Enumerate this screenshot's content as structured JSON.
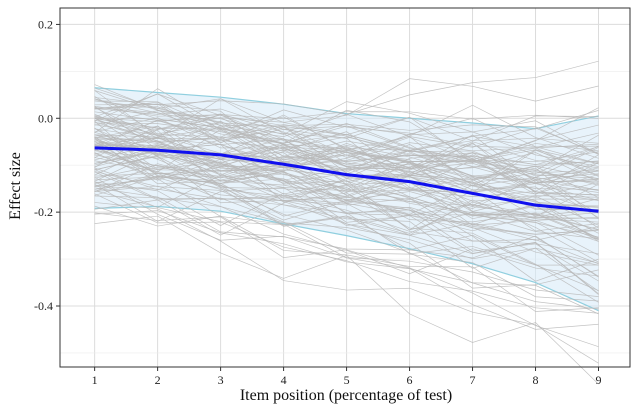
{
  "chart_data": {
    "type": "line",
    "title": "",
    "xlabel": "Item position (percentage of test)",
    "ylabel": "Effect size",
    "xlim": [
      0.45,
      9.5
    ],
    "ylim": [
      -0.53,
      0.235
    ],
    "xticks": [
      1,
      2,
      3,
      4,
      5,
      6,
      7,
      8,
      9
    ],
    "yticks": [
      0.2,
      0.0,
      -0.2,
      -0.4
    ],
    "ytick_labels": [
      "0.2",
      "0.0",
      "-0.2",
      "-0.4"
    ],
    "grid": true,
    "legend": "none",
    "x": [
      1,
      2,
      3,
      4,
      5,
      6,
      7,
      8,
      9
    ],
    "colors": {
      "mean": "#1010ee",
      "band_fill": "#d6eaf8",
      "band_edge": "#90cfdf",
      "individual": "#b8b8b8",
      "grid": "#dcdcdc"
    },
    "mean_series": [
      -0.063,
      -0.068,
      -0.078,
      -0.098,
      -0.12,
      -0.135,
      -0.16,
      -0.185,
      -0.198
    ],
    "band_upper": [
      0.065,
      0.055,
      0.045,
      0.03,
      0.01,
      0.0,
      -0.01,
      -0.022,
      0.005
    ],
    "band_lower": [
      -0.192,
      -0.188,
      -0.198,
      -0.225,
      -0.25,
      -0.278,
      -0.31,
      -0.35,
      -0.41
    ],
    "individual_series": {
      "count": 120,
      "seed": 7,
      "start_mean": -0.063,
      "slope_mean": -0.017,
      "intercept_sd": 0.06,
      "slope_sd": 0.012,
      "noise_sd": 0.028
    }
  }
}
